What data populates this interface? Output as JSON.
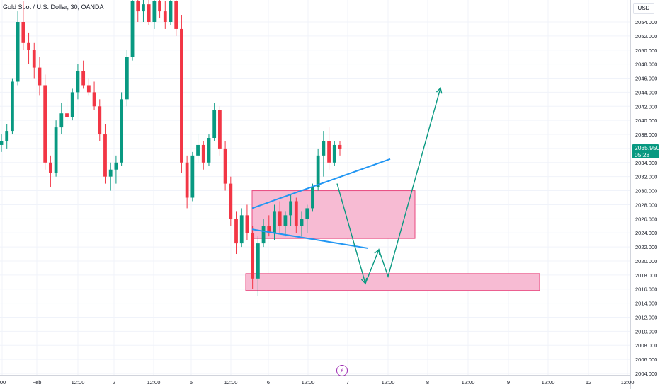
{
  "header": {
    "title": "Gold Spot / U.S. Dollar, 30, OANDA",
    "currency": "USD"
  },
  "price_label": {
    "price": "2035.950",
    "countdown": "05:28",
    "color": "#089981"
  },
  "colors": {
    "up": "#089981",
    "down": "#f23645",
    "zone_fill": "#f7bbd3",
    "zone_stroke": "#e8497f",
    "trendline": "#2196f3",
    "projection": "#089981"
  },
  "event_marker": "flash-icon",
  "chart_data": {
    "type": "candlestick",
    "title": "Gold Spot / U.S. Dollar, 30, OANDA",
    "ylim": [
      2003.5,
      2058
    ],
    "y_ticks": [
      "2054.000",
      "2052.000",
      "2050.000",
      "2048.000",
      "2046.000",
      "2044.000",
      "2042.000",
      "2040.000",
      "2038.000",
      "2036.000",
      "2034.000",
      "2032.000",
      "2030.000",
      "2028.000",
      "2026.000",
      "2024.000",
      "2022.000",
      "2020.000",
      "2018.000",
      "2016.000",
      "2014.000",
      "2012.000",
      "2010.000",
      "2008.000",
      "2006.000",
      "2004.000"
    ],
    "x_ticks": [
      ":00",
      "Feb",
      "12:00",
      "2",
      "12:00",
      "5",
      "12:00",
      "6",
      "12:00",
      "7",
      "12:00",
      "8",
      "12:00",
      "9",
      "12:00",
      "12",
      "12:00"
    ],
    "current_price": 2035.95,
    "grid": true,
    "candles": [
      [
        2036.5,
        2038.0,
        2035.5,
        2037.0
      ],
      [
        2037.0,
        2039.5,
        2036.0,
        2038.5
      ],
      [
        2038.5,
        2046.0,
        2038.0,
        2045.5
      ],
      [
        2045.5,
        2055.5,
        2045.0,
        2054.0
      ],
      [
        2054.0,
        2057.0,
        2050.0,
        2051.0
      ],
      [
        2051.0,
        2052.5,
        2048.0,
        2050.0
      ],
      [
        2050.0,
        2051.0,
        2046.0,
        2047.5
      ],
      [
        2047.5,
        2049.0,
        2043.5,
        2045.0
      ],
      [
        2045.0,
        2046.5,
        2033.0,
        2034.0
      ],
      [
        2034.0,
        2035.0,
        2030.5,
        2032.5
      ],
      [
        2032.5,
        2040.0,
        2032.0,
        2039.0
      ],
      [
        2039.0,
        2042.5,
        2038.0,
        2041.0
      ],
      [
        2041.0,
        2043.0,
        2039.5,
        2040.5
      ],
      [
        2040.5,
        2044.5,
        2040.0,
        2044.0
      ],
      [
        2044.0,
        2048.0,
        2043.0,
        2047.0
      ],
      [
        2047.0,
        2048.5,
        2044.5,
        2045.0
      ],
      [
        2045.0,
        2046.0,
        2043.5,
        2044.0
      ],
      [
        2044.0,
        2045.5,
        2041.5,
        2042.0
      ],
      [
        2042.0,
        2043.0,
        2037.0,
        2038.0
      ],
      [
        2038.0,
        2039.5,
        2031.0,
        2032.0
      ],
      [
        2032.0,
        2034.0,
        2030.0,
        2033.0
      ],
      [
        2033.0,
        2035.0,
        2031.0,
        2034.0
      ],
      [
        2034.0,
        2044.0,
        2033.5,
        2043.0
      ],
      [
        2043.0,
        2050.0,
        2042.0,
        2049.0
      ],
      [
        2049.0,
        2057.5,
        2048.5,
        2057.0
      ],
      [
        2057.0,
        2058.0,
        2054.0,
        2055.5
      ],
      [
        2055.5,
        2058.0,
        2054.0,
        2056.5
      ],
      [
        2056.5,
        2058.0,
        2053.5,
        2054.0
      ],
      [
        2054.0,
        2057.5,
        2053.0,
        2057.0
      ],
      [
        2057.0,
        2058.0,
        2054.5,
        2055.5
      ],
      [
        2055.5,
        2057.0,
        2053.0,
        2054.0
      ],
      [
        2054.0,
        2058.0,
        2053.5,
        2057.0
      ],
      [
        2057.0,
        2058.0,
        2052.0,
        2053.0
      ],
      [
        2053.0,
        2055.0,
        2032.5,
        2034.0
      ],
      [
        2034.0,
        2035.0,
        2027.5,
        2029.0
      ],
      [
        2029.0,
        2035.5,
        2028.5,
        2035.0
      ],
      [
        2035.0,
        2038.0,
        2034.0,
        2036.5
      ],
      [
        2036.5,
        2037.0,
        2033.0,
        2034.0
      ],
      [
        2034.0,
        2038.0,
        2033.5,
        2037.5
      ],
      [
        2037.5,
        2042.5,
        2037.0,
        2041.5
      ],
      [
        2041.5,
        2042.0,
        2035.0,
        2036.0
      ],
      [
        2036.0,
        2037.0,
        2030.0,
        2031.0
      ],
      [
        2031.0,
        2032.0,
        2025.0,
        2026.0
      ],
      [
        2026.0,
        2027.0,
        2021.0,
        2022.5
      ],
      [
        2022.5,
        2027.5,
        2022.0,
        2026.5
      ],
      [
        2026.5,
        2028.0,
        2023.0,
        2024.0
      ],
      [
        2024.0,
        2025.0,
        2016.0,
        2017.5
      ],
      [
        2017.5,
        2023.5,
        2015.0,
        2022.5
      ],
      [
        2022.5,
        2026.0,
        2022.0,
        2025.0
      ],
      [
        2025.0,
        2026.5,
        2023.5,
        2024.0
      ],
      [
        2024.0,
        2028.0,
        2023.0,
        2027.0
      ],
      [
        2027.0,
        2028.5,
        2024.0,
        2025.0
      ],
      [
        2025.0,
        2027.0,
        2023.5,
        2026.5
      ],
      [
        2026.5,
        2029.5,
        2025.0,
        2028.5
      ],
      [
        2028.5,
        2029.0,
        2024.0,
        2025.0
      ],
      [
        2025.0,
        2027.0,
        2023.5,
        2026.0
      ],
      [
        2026.0,
        2028.0,
        2024.0,
        2027.5
      ],
      [
        2027.5,
        2031.0,
        2027.0,
        2030.5
      ],
      [
        2030.5,
        2036.0,
        2030.0,
        2035.0
      ],
      [
        2035.0,
        2038.5,
        2032.0,
        2037.0
      ],
      [
        2037.0,
        2039.0,
        2033.0,
        2034.0
      ],
      [
        2034.0,
        2037.0,
        2033.5,
        2036.5
      ],
      [
        2036.5,
        2037.0,
        2035.0,
        2035.95
      ]
    ],
    "annotations": {
      "zones": [
        {
          "y": [
            2023.2,
            2030.0
          ],
          "span": "consolidation"
        },
        {
          "y": [
            2015.8,
            2018.2
          ],
          "span": "support"
        }
      ],
      "trendlines": [
        {
          "from": [
            2027.5
          ],
          "to": [
            2034.5
          ],
          "label": ""
        },
        {
          "from": [
            2024.5
          ],
          "to": [
            2021.8
          ],
          "label": ""
        }
      ],
      "projection": [
        2031.0,
        2016.8,
        2021.6,
        2017.8,
        2044.6
      ]
    }
  }
}
